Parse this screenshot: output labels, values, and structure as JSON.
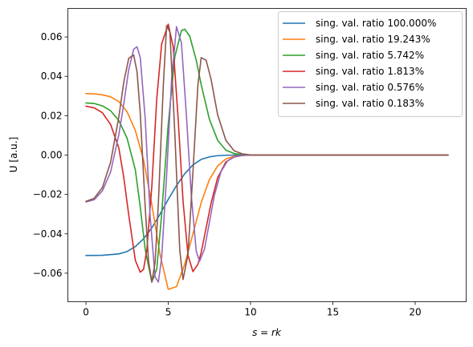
{
  "chart_data": {
    "type": "line",
    "title": "",
    "xlabel": "s = rk",
    "ylabel": "U [a.u.]",
    "xlim": [
      -1.1,
      23.1
    ],
    "ylim": [
      -0.0745,
      0.0745
    ],
    "xticks": [
      0,
      5,
      10,
      15,
      20
    ],
    "xtick_labels": [
      "0",
      "5",
      "10",
      "15",
      "20"
    ],
    "yticks": [
      -0.06,
      -0.04,
      -0.02,
      0.0,
      0.02,
      0.04,
      0.06
    ],
    "ytick_labels": [
      "−0.06",
      "−0.04",
      "−0.02",
      "0.00",
      "0.02",
      "0.04",
      "0.06"
    ],
    "grid": false,
    "legend_position": "top-right",
    "series": [
      {
        "name": "sing. val. ratio 100.000%",
        "color": "#1f77b4",
        "x": [
          0,
          1,
          2,
          2.5,
          3,
          3.5,
          4,
          4.5,
          5,
          5.5,
          6,
          6.5,
          7,
          7.5,
          8,
          8.5,
          9,
          10,
          11,
          12,
          14,
          16,
          18,
          20,
          22
        ],
        "y": [
          -0.051,
          -0.0509,
          -0.0502,
          -0.049,
          -0.0465,
          -0.0425,
          -0.037,
          -0.03,
          -0.0225,
          -0.0155,
          -0.0095,
          -0.005,
          -0.0022,
          -0.0009,
          -0.0003,
          -0.0001,
          0.0,
          0.0,
          0.0,
          0.0,
          0.0,
          0.0,
          0.0,
          0.0,
          0.0
        ]
      },
      {
        "name": "sing. val. ratio 19.243%",
        "color": "#ff7f0e",
        "x": [
          0,
          0.5,
          1,
          1.5,
          2,
          2.5,
          3,
          3.5,
          4,
          4.5,
          5,
          5.5,
          6,
          6.5,
          7,
          7.5,
          8,
          8.5,
          9,
          9.5,
          10,
          11,
          12,
          14,
          16,
          18,
          20,
          22
        ],
        "y": [
          0.0312,
          0.0311,
          0.0306,
          0.0296,
          0.0272,
          0.022,
          0.0125,
          -0.0025,
          -0.025,
          -0.0505,
          -0.0682,
          -0.0668,
          -0.0555,
          -0.04,
          -0.0242,
          -0.0125,
          -0.0055,
          -0.002,
          -0.0006,
          -0.0002,
          0.0,
          0.0,
          0.0,
          0.0,
          0.0,
          0.0,
          0.0,
          0.0
        ]
      },
      {
        "name": "sing. val. ratio 5.742%",
        "color": "#2ca02c",
        "x": [
          0,
          0.5,
          1,
          1.5,
          2,
          2.5,
          3,
          3.3,
          3.6,
          4,
          4.3,
          4.6,
          5,
          5.4,
          5.8,
          6,
          6.3,
          6.7,
          7,
          7.5,
          8,
          8.5,
          9,
          9.5,
          10,
          11,
          12,
          14,
          16,
          18,
          20,
          22
        ],
        "y": [
          0.0265,
          0.0262,
          0.025,
          0.0225,
          0.0175,
          0.0085,
          -0.0075,
          -0.0265,
          -0.048,
          -0.0645,
          -0.058,
          -0.03,
          0.0158,
          0.05,
          0.0632,
          0.064,
          0.0605,
          0.0482,
          0.0358,
          0.0182,
          0.0075,
          0.0025,
          0.0008,
          0.0002,
          0.0,
          0.0,
          0.0,
          0.0,
          0.0,
          0.0,
          0.0,
          0.0
        ]
      },
      {
        "name": "sing. val. ratio 1.813%",
        "color": "#d62728",
        "x": [
          0,
          0.5,
          1,
          1.5,
          2,
          2.3,
          2.6,
          3,
          3.3,
          3.5,
          3.7,
          4,
          4.3,
          4.6,
          5,
          5.3,
          5.6,
          5.9,
          6.2,
          6.5,
          6.8,
          7,
          7.3,
          7.6,
          8,
          8.5,
          9,
          9.5,
          10,
          11,
          12,
          14,
          16,
          18,
          20,
          22
        ],
        "y": [
          0.0248,
          0.024,
          0.0215,
          0.0155,
          0.0035,
          -0.0115,
          -0.0305,
          -0.0535,
          -0.0595,
          -0.058,
          -0.048,
          -0.016,
          0.0285,
          0.0565,
          0.0665,
          0.055,
          0.0185,
          -0.0235,
          -0.051,
          -0.0592,
          -0.0555,
          -0.0495,
          -0.037,
          -0.0245,
          -0.0115,
          -0.0035,
          -0.001,
          -0.0002,
          0.0,
          0.0,
          0.0,
          0.0,
          0.0,
          0.0,
          0.0,
          0.0
        ]
      },
      {
        "name": "sing. val. ratio 0.576%",
        "color": "#9467bd",
        "x": [
          0,
          0.5,
          1,
          1.5,
          2,
          2.3,
          2.6,
          2.9,
          3.1,
          3.3,
          3.6,
          3.9,
          4.2,
          4.4,
          4.6,
          4.9,
          5.2,
          5.5,
          5.8,
          6.1,
          6.4,
          6.7,
          6.9,
          7.2,
          7.5,
          7.8,
          8.2,
          8.6,
          9,
          9.5,
          10,
          11,
          12,
          14,
          16,
          18,
          20,
          22
        ],
        "y": [
          -0.0238,
          -0.0227,
          -0.0182,
          -0.0085,
          0.0105,
          0.0262,
          0.0435,
          0.0538,
          0.055,
          0.0495,
          0.0185,
          -0.0312,
          -0.062,
          -0.0645,
          -0.052,
          -0.0105,
          0.038,
          0.0652,
          0.057,
          0.0205,
          -0.0205,
          -0.0488,
          -0.054,
          -0.0478,
          -0.0342,
          -0.0205,
          -0.0085,
          -0.003,
          -0.0009,
          -0.0002,
          0.0,
          0.0,
          0.0,
          0.0,
          0.0,
          0.0,
          0.0,
          0.0
        ]
      },
      {
        "name": "sing. val. ratio 0.183%",
        "color": "#8c564b",
        "x": [
          0,
          0.5,
          1,
          1.5,
          2,
          2.3,
          2.6,
          2.9,
          3.1,
          3.3,
          3.6,
          3.8,
          4,
          4.2,
          4.4,
          4.7,
          4.9,
          5.1,
          5.4,
          5.7,
          5.9,
          6.2,
          6.5,
          6.8,
          7,
          7.3,
          7.6,
          8,
          8.5,
          9,
          9.5,
          10,
          10.5,
          11,
          12,
          14,
          16,
          18,
          20,
          22
        ],
        "y": [
          -0.0235,
          -0.022,
          -0.0165,
          -0.0035,
          0.0195,
          0.0372,
          0.0492,
          0.0508,
          0.0425,
          0.0212,
          -0.0265,
          -0.0538,
          -0.0645,
          -0.0545,
          -0.0242,
          0.0355,
          0.0658,
          0.0625,
          0.0108,
          -0.0485,
          -0.0632,
          -0.0505,
          -0.0085,
          0.0355,
          0.0495,
          0.0482,
          0.0385,
          0.0205,
          0.0075,
          0.0022,
          0.0006,
          0.0001,
          0.0,
          0.0,
          0.0,
          0.0,
          0.0,
          0.0,
          0.0,
          0.0
        ]
      }
    ]
  }
}
